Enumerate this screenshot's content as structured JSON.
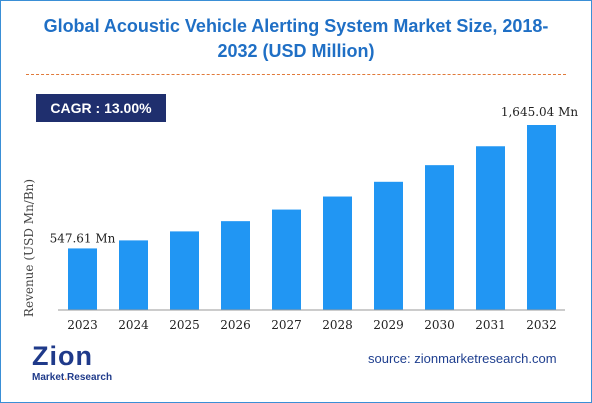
{
  "chart_data": {
    "type": "bar",
    "title_line1": "Global Acoustic Vehicle Alerting System Market Size, 2018-",
    "title_line2": "2032 (USD Million)",
    "ylabel": "Revenue (USD Mn/Bn)",
    "xlabel": "",
    "categories": [
      "2023",
      "2024",
      "2025",
      "2026",
      "2027",
      "2028",
      "2029",
      "2030",
      "2031",
      "2032"
    ],
    "values": [
      547.61,
      619,
      699,
      790,
      893,
      1009,
      1140,
      1288,
      1456,
      1645.04
    ],
    "first_label": "547.61 Mn",
    "last_label": "1,645.04 Mn",
    "ylim": [
      0,
      1645.04
    ],
    "grid": false,
    "bar_color": "#2196f3"
  },
  "badge": {
    "text": "CAGR : 13.00%"
  },
  "source": "source: zionmarketresearch.com",
  "logo": {
    "word": "Zion",
    "sub_left": "Market",
    "sub_sep": ".",
    "sub_right": "Research"
  },
  "colors": {
    "title": "#1f6fc5",
    "badge_bg": "#1f2f6e",
    "divider": "#e07a3a",
    "frame": "#3a8fd6"
  }
}
